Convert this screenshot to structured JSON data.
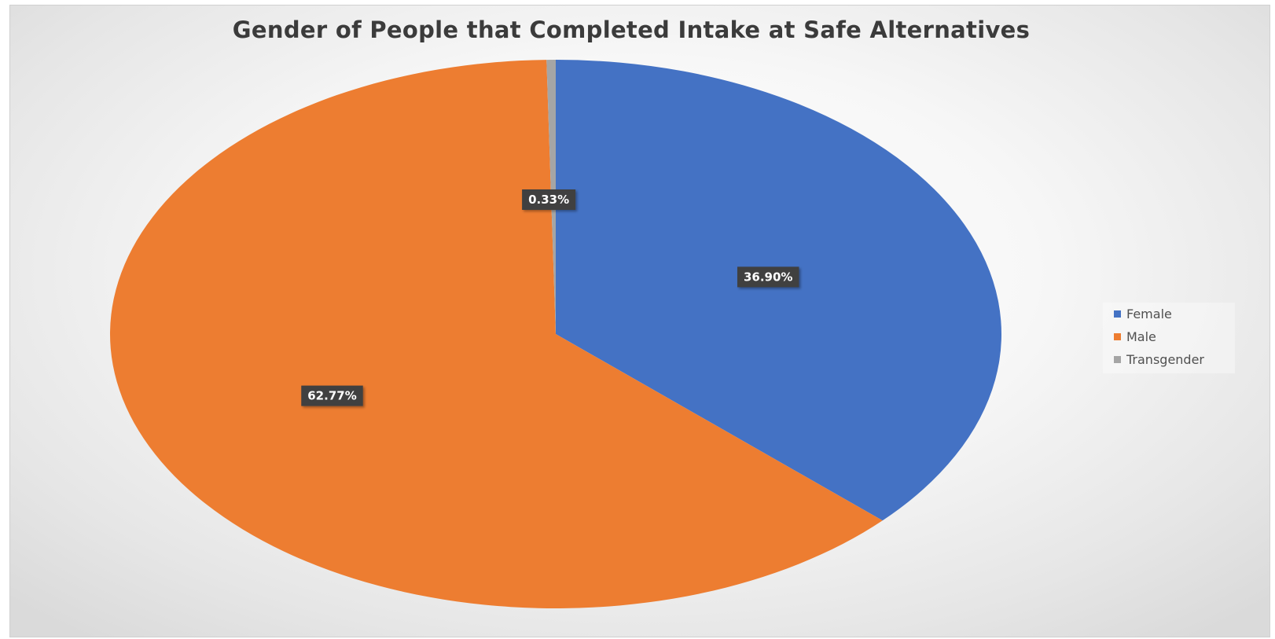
{
  "chart_data": {
    "type": "pie",
    "title": "Gender of People that Completed Intake at Safe Alternatives",
    "categories": [
      "Female",
      "Male",
      "Transgender"
    ],
    "values": [
      36.9,
      62.77,
      0.33
    ],
    "labels": [
      "36.90%",
      "62.77%",
      "0.33%"
    ],
    "colors": [
      "#4472C4",
      "#ED7D31",
      "#A5A5A5"
    ],
    "start_angle_deg": 0,
    "direction": "clockwise",
    "legend_position": "right"
  },
  "legend": {
    "items": [
      {
        "label": "Female",
        "color": "#4472C4"
      },
      {
        "label": "Male",
        "color": "#ED7D31"
      },
      {
        "label": "Transgender",
        "color": "#A5A5A5"
      }
    ]
  }
}
